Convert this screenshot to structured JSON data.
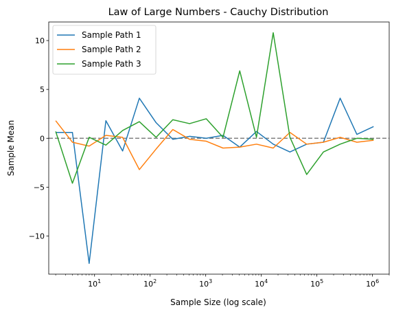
{
  "chart_data": {
    "type": "line",
    "title": "Law of Large Numbers - Cauchy Distribution",
    "xlabel": "Sample Size (log scale)",
    "ylabel": "Sample Mean",
    "xscale": "log",
    "xlim": [
      1.5,
      2000000
    ],
    "ylim": [
      -13.9,
      11.9
    ],
    "x": [
      2,
      4,
      8,
      16,
      32,
      64,
      128,
      256,
      512,
      1024,
      2048,
      4096,
      8192,
      16384,
      32768,
      65536,
      131072,
      262144,
      524288,
      1048576
    ],
    "x_ticks": [
      {
        "value": 10,
        "base": "10",
        "exp": "1"
      },
      {
        "value": 100,
        "base": "10",
        "exp": "2"
      },
      {
        "value": 1000,
        "base": "10",
        "exp": "3"
      },
      {
        "value": 10000,
        "base": "10",
        "exp": "4"
      },
      {
        "value": 100000,
        "base": "10",
        "exp": "5"
      },
      {
        "value": 1000000,
        "base": "10",
        "exp": "6"
      }
    ],
    "y_ticks": [
      {
        "value": 10,
        "label": "10"
      },
      {
        "value": 5,
        "label": "5"
      },
      {
        "value": 0,
        "label": "0"
      },
      {
        "value": -5,
        "label": "−5"
      },
      {
        "value": -10,
        "label": "−10"
      }
    ],
    "reference_line": {
      "y": 0,
      "color": "#808080",
      "style": "dashed"
    },
    "grid": false,
    "legend": {
      "placement": "upper-left"
    },
    "series": [
      {
        "name": "Sample Path 1",
        "color": "#1f77b4",
        "values": [
          0.6,
          0.6,
          -12.8,
          1.8,
          -1.3,
          4.1,
          1.6,
          -0.1,
          0.2,
          0.0,
          0.3,
          -0.9,
          0.7,
          -0.6,
          -1.4,
          -0.6,
          -0.4,
          4.1,
          0.4,
          1.2
        ]
      },
      {
        "name": "Sample Path 2",
        "color": "#ff7f0e",
        "values": [
          1.8,
          -0.4,
          -0.8,
          0.3,
          0.1,
          -3.2,
          -1.1,
          0.9,
          -0.1,
          -0.3,
          -1.0,
          -0.9,
          -0.6,
          -1.0,
          0.6,
          -0.6,
          -0.4,
          0.1,
          -0.4,
          -0.2
        ]
      },
      {
        "name": "Sample Path 3",
        "color": "#2ca02c",
        "values": [
          0.7,
          -4.6,
          0.1,
          -0.7,
          0.8,
          1.7,
          0.1,
          1.9,
          1.5,
          2.0,
          0.1,
          6.9,
          0.1,
          10.8,
          0.1,
          -3.7,
          -1.4,
          -0.6,
          0.0,
          -0.1
        ]
      }
    ]
  }
}
